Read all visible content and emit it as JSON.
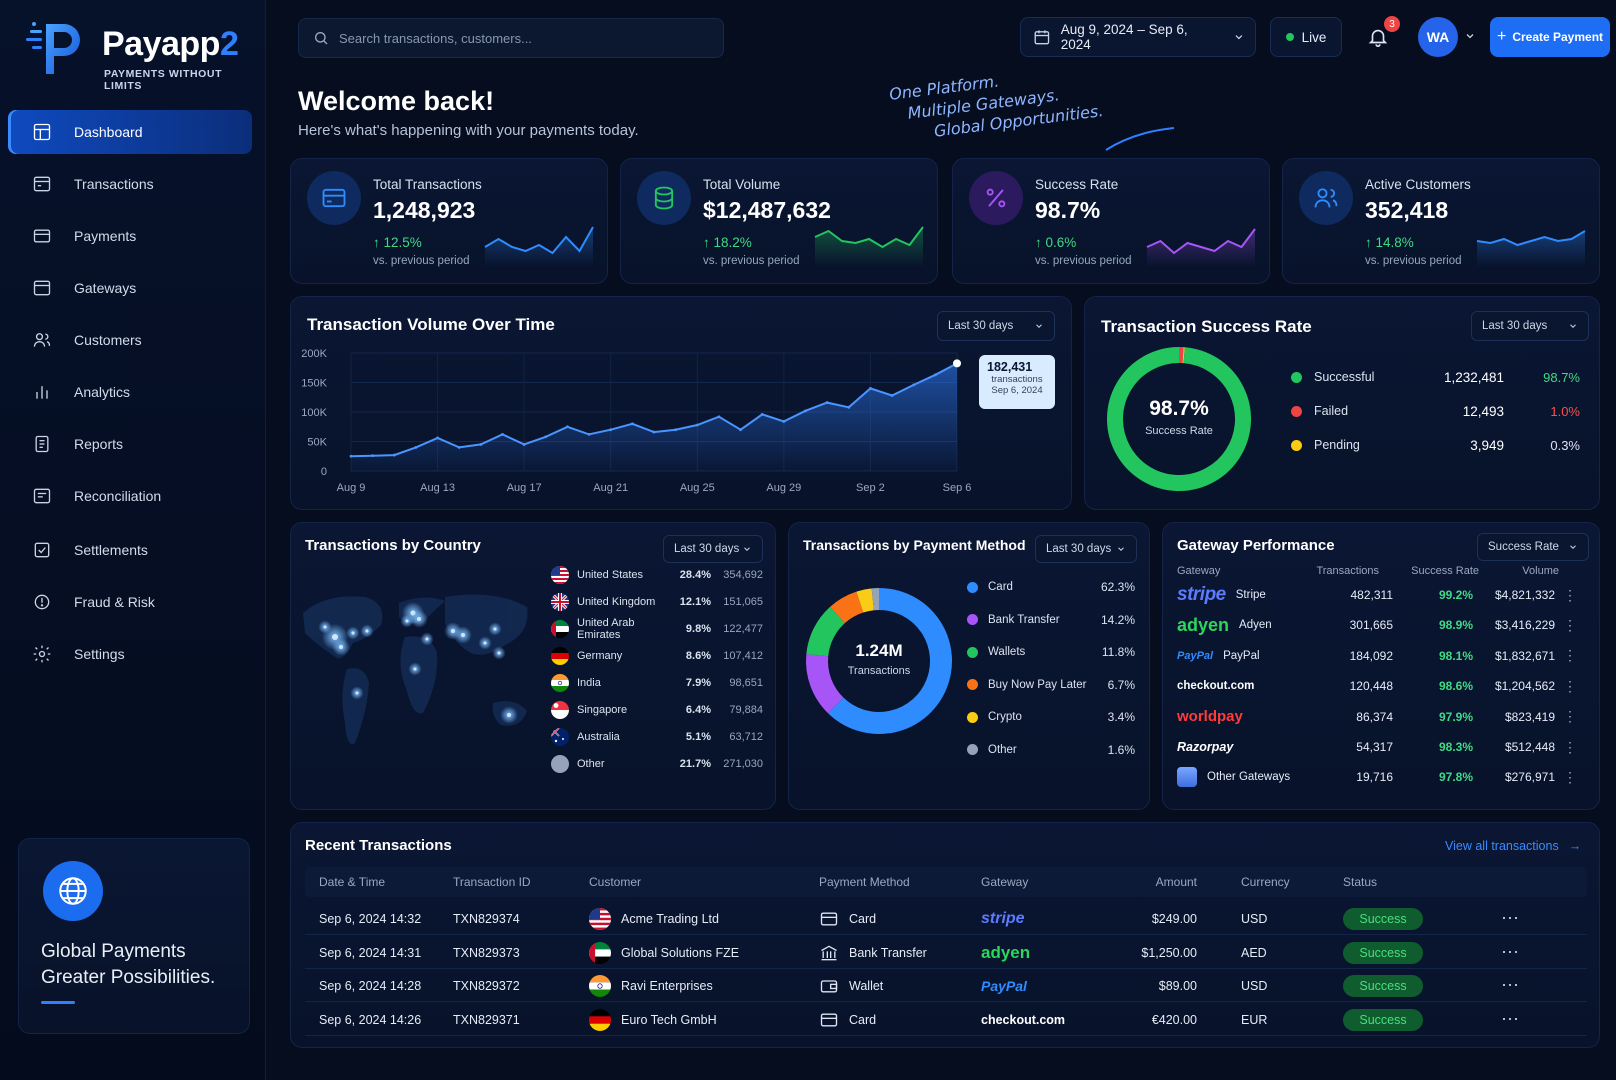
{
  "app": {
    "name_main": "Payapp",
    "name_suffix": "2",
    "tagline": "PAYMENTS WITHOUT LIMITS"
  },
  "nav": [
    {
      "label": "Dashboard",
      "icon": "dashboard-icon",
      "active": true
    },
    {
      "label": "Transactions",
      "icon": "transactions-icon"
    },
    {
      "label": "Payments",
      "icon": "payments-icon"
    },
    {
      "label": "Gateways",
      "icon": "gateways-icon"
    },
    {
      "label": "Customers",
      "icon": "customers-icon"
    },
    {
      "label": "Analytics",
      "icon": "analytics-icon"
    },
    {
      "label": "Reports",
      "icon": "reports-icon"
    },
    {
      "label": "Reconciliation",
      "icon": "reconciliation-icon"
    },
    {
      "label": "Settlements",
      "icon": "settlements-icon"
    },
    {
      "label": "Fraud & Risk",
      "icon": "fraud-risk-icon"
    },
    {
      "label": "Settings",
      "icon": "settings-icon"
    }
  ],
  "promo": {
    "line1": "Global Payments",
    "line2": "Greater Possibilities."
  },
  "topbar": {
    "search_placeholder": "Search transactions, customers...",
    "date_range": "Aug 9, 2024 – Sep 6, 2024",
    "live_label": "Live",
    "notif_count": "3",
    "avatar": "WA",
    "create_label": "Create Payment"
  },
  "header": {
    "welcome": "Welcome back!",
    "subtitle": "Here's what's happening with your payments today.",
    "slogan": [
      "One Platform.",
      "Multiple Gateways.",
      "Global Opportunities."
    ]
  },
  "kpis": [
    {
      "label": "Total Transactions",
      "value": "1,248,923",
      "change": "↑ 12.5%",
      "period": "vs. previous period",
      "color": "#2f8cff",
      "icon": "card-icon"
    },
    {
      "label": "Total Volume",
      "value": "$12,487,632",
      "change": "↑ 18.2%",
      "period": "vs. previous period",
      "color": "#22c55e",
      "icon": "database-icon"
    },
    {
      "label": "Success Rate",
      "value": "98.7%",
      "change": "↑ 0.6%",
      "period": "vs. previous period",
      "color": "#a855f7",
      "icon": "percent-icon"
    },
    {
      "label": "Active Customers",
      "value": "352,418",
      "change": "↑ 14.8%",
      "period": "vs. previous period",
      "color": "#2f8cff",
      "icon": "users-icon"
    }
  ],
  "volume_chart": {
    "title": "Transaction Volume Over Time",
    "range_label": "Last 30 days",
    "tooltip": {
      "value": "182,431",
      "unit": "transactions",
      "date": "Sep 6, 2024"
    }
  },
  "success_chart": {
    "title": "Transaction Success Rate",
    "range_label": "Last 30 days",
    "center_value": "98.7%",
    "center_label": "Success Rate",
    "rows": [
      {
        "label": "Successful",
        "count": "1,232,481",
        "pct": "98.7%",
        "color": "#22c55e",
        "pct_color": "#3ddc84"
      },
      {
        "label": "Failed",
        "count": "12,493",
        "pct": "1.0%",
        "color": "#ef4444",
        "pct_color": "#ff4d4d"
      },
      {
        "label": "Pending",
        "count": "3,949",
        "pct": "0.3%",
        "color": "#facc15",
        "pct_color": "#dbe3ef"
      }
    ]
  },
  "country": {
    "title": "Transactions by Country",
    "range_label": "Last 30 days",
    "rows": [
      {
        "name": "United States",
        "pct": "28.4%",
        "count": "354,692",
        "flag": "us"
      },
      {
        "name": "United Kingdom",
        "pct": "12.1%",
        "count": "151,065",
        "flag": "uk"
      },
      {
        "name": "United Arab Emirates",
        "pct": "9.8%",
        "count": "122,477",
        "flag": "ae"
      },
      {
        "name": "Germany",
        "pct": "8.6%",
        "count": "107,412",
        "flag": "de"
      },
      {
        "name": "India",
        "pct": "7.9%",
        "count": "98,651",
        "flag": "in"
      },
      {
        "name": "Singapore",
        "pct": "6.4%",
        "count": "79,884",
        "flag": "sg"
      },
      {
        "name": "Australia",
        "pct": "5.1%",
        "count": "63,712",
        "flag": "au"
      },
      {
        "name": "Other",
        "pct": "21.7%",
        "count": "271,030",
        "flag": "other"
      }
    ]
  },
  "method": {
    "title": "Transactions by Payment Method",
    "range_label": "Last 30 days",
    "center_value": "1.24M",
    "center_label": "Transactions",
    "rows": [
      {
        "label": "Card",
        "pct": "62.3%",
        "color": "#2f8cff"
      },
      {
        "label": "Bank Transfer",
        "pct": "14.2%",
        "color": "#a855f7"
      },
      {
        "label": "Wallets",
        "pct": "11.8%",
        "color": "#22c55e"
      },
      {
        "label": "Buy Now Pay Later",
        "pct": "6.7%",
        "color": "#f97316"
      },
      {
        "label": "Crypto",
        "pct": "3.4%",
        "color": "#facc15"
      },
      {
        "label": "Other",
        "pct": "1.6%",
        "color": "#94a3b8"
      }
    ]
  },
  "gateway": {
    "title": "Gateway Performance",
    "sort_label": "Success Rate",
    "headers": [
      "Gateway",
      "Transactions",
      "Success Rate",
      "Volume"
    ],
    "rows": [
      {
        "logo": "stripe",
        "name": "Stripe",
        "tx": "482,311",
        "rate": "99.2%",
        "vol": "$4,821,332"
      },
      {
        "logo": "adyen",
        "name": "Adyen",
        "tx": "301,665",
        "rate": "98.9%",
        "vol": "$3,416,229"
      },
      {
        "logo": "PayPal",
        "name": "PayPal",
        "tx": "184,092",
        "rate": "98.1%",
        "vol": "$1,832,671"
      },
      {
        "logo": "",
        "name": "checkout.com",
        "tx": "120,448",
        "rate": "98.6%",
        "vol": "$1,204,562"
      },
      {
        "logo": "",
        "name": "worldpay",
        "tx": "86,374",
        "rate": "97.9%",
        "vol": "$823,419"
      },
      {
        "logo": "",
        "name": "Razorpay",
        "tx": "54,317",
        "rate": "98.3%",
        "vol": "$512,448"
      },
      {
        "logo": "",
        "name": "Other Gateways",
        "tx": "19,716",
        "rate": "97.8%",
        "vol": "$276,971"
      }
    ]
  },
  "recent": {
    "title": "Recent Transactions",
    "view_all": "View all transactions",
    "headers": [
      "Date & Time",
      "Transaction ID",
      "Customer",
      "Payment Method",
      "Gateway",
      "Amount",
      "Currency",
      "Status"
    ],
    "rows": [
      {
        "date": "Sep 6, 2024 14:32",
        "id": "TXN829374",
        "customer": "Acme Trading Ltd",
        "flag": "us",
        "method": "Card",
        "gateway": "stripe",
        "amount": "$249.00",
        "currency": "USD",
        "status": "Success"
      },
      {
        "date": "Sep 6, 2024 14:31",
        "id": "TXN829373",
        "customer": "Global Solutions FZE",
        "flag": "ae",
        "method": "Bank Transfer",
        "gateway": "adyen",
        "amount": "$1,250.00",
        "currency": "AED",
        "status": "Success"
      },
      {
        "date": "Sep 6, 2024 14:28",
        "id": "TXN829372",
        "customer": "Ravi Enterprises",
        "flag": "in",
        "method": "Wallet",
        "gateway": "PayPal",
        "amount": "$89.00",
        "currency": "USD",
        "status": "Success"
      },
      {
        "date": "Sep 6, 2024 14:26",
        "id": "TXN829371",
        "customer": "Euro Tech GmbH",
        "flag": "de",
        "method": "Card",
        "gateway": "checkout.com",
        "amount": "€420.00",
        "currency": "EUR",
        "status": "Success"
      }
    ]
  },
  "chart_data": [
    {
      "type": "line",
      "title": "Transaction Volume Over Time",
      "x": [
        "Aug 9",
        "Aug 10",
        "Aug 11",
        "Aug 12",
        "Aug 13",
        "Aug 14",
        "Aug 15",
        "Aug 16",
        "Aug 17",
        "Aug 18",
        "Aug 19",
        "Aug 20",
        "Aug 21",
        "Aug 22",
        "Aug 23",
        "Aug 24",
        "Aug 25",
        "Aug 26",
        "Aug 27",
        "Aug 28",
        "Aug 29",
        "Aug 30",
        "Aug 31",
        "Sep 1",
        "Sep 2",
        "Sep 3",
        "Sep 4",
        "Sep 5",
        "Sep 6"
      ],
      "x_ticks": [
        "Aug 9",
        "Aug 13",
        "Aug 17",
        "Aug 21",
        "Aug 25",
        "Aug 29",
        "Sep 2",
        "Sep 6"
      ],
      "values": [
        25000,
        26000,
        27000,
        40000,
        56000,
        40000,
        45000,
        62000,
        45000,
        58000,
        75000,
        62000,
        70000,
        80000,
        66000,
        70000,
        78000,
        92000,
        70000,
        96000,
        84000,
        102000,
        116000,
        108000,
        140000,
        128000,
        146000,
        163000,
        182431
      ],
      "y_ticks": [
        "0",
        "50K",
        "100K",
        "150K",
        "200K"
      ],
      "ylim": [
        0,
        200000
      ],
      "color": "#2f80ff"
    },
    {
      "type": "pie",
      "title": "Transaction Success Rate",
      "labels": [
        "Successful",
        "Failed",
        "Pending"
      ],
      "values": [
        98.7,
        1.0,
        0.3
      ],
      "colors": [
        "#22c55e",
        "#ef4444",
        "#facc15"
      ]
    },
    {
      "type": "pie",
      "title": "Transactions by Payment Method",
      "labels": [
        "Card",
        "Bank Transfer",
        "Wallets",
        "Buy Now Pay Later",
        "Crypto",
        "Other"
      ],
      "values": [
        62.3,
        14.2,
        11.8,
        6.7,
        3.4,
        1.6
      ],
      "colors": [
        "#2f8cff",
        "#a855f7",
        "#22c55e",
        "#f97316",
        "#facc15",
        "#94a3b8"
      ]
    }
  ]
}
